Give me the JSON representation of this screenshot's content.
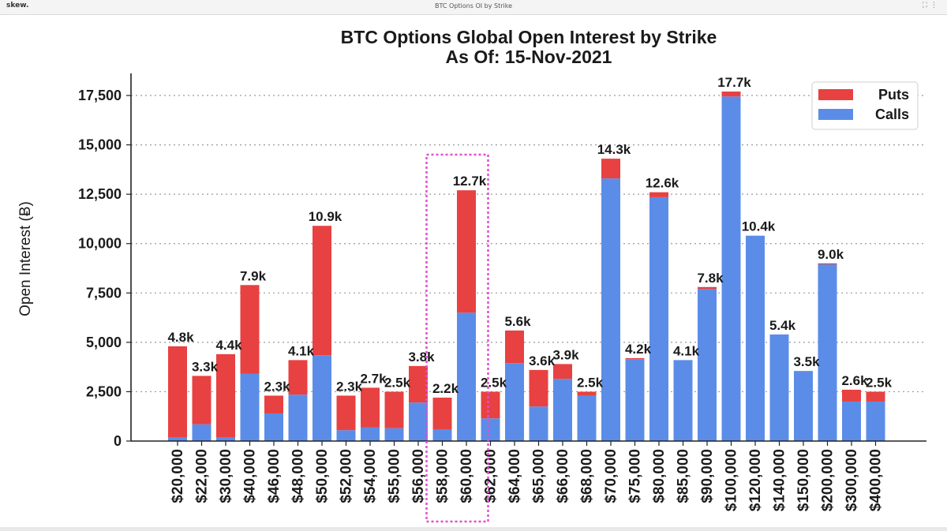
{
  "window": {
    "brand": "skew.",
    "title": "BTC Options OI by Strike",
    "icons": [
      "expand-icon",
      "more-options-icon"
    ]
  },
  "chart_data": {
    "type": "bar",
    "stacked": true,
    "title": "BTC Options Global Open Interest by Strike",
    "subtitle": "As Of: 15-Nov-2021",
    "xlabel": "",
    "ylabel": "Open Interest (Ƀ)",
    "ylim": [
      0,
      18500
    ],
    "yticks": [
      0,
      2500,
      5000,
      7500,
      10000,
      12500,
      15000,
      17500
    ],
    "ytick_labels": [
      "0",
      "2,500",
      "5,000",
      "7,500",
      "10,000",
      "12,500",
      "15,000",
      "17,500"
    ],
    "grid": "horizontal-dotted",
    "legend_position": "top-right",
    "colors": {
      "Puts": "#e84141",
      "Calls": "#5b8de8",
      "highlight": "#e04fd0"
    },
    "categories": [
      "$20,000",
      "$22,000",
      "$30,000",
      "$40,000",
      "$46,000",
      "$48,000",
      "$50,000",
      "$52,000",
      "$54,000",
      "$55,000",
      "$56,000",
      "$58,000",
      "$60,000",
      "$62,000",
      "$64,000",
      "$65,000",
      "$66,000",
      "$68,000",
      "$70,000",
      "$75,000",
      "$80,000",
      "$85,000",
      "$90,000",
      "$100,000",
      "$120,000",
      "$140,000",
      "$150,000",
      "$200,000",
      "$300,000",
      "$400,000"
    ],
    "series": [
      {
        "name": "Calls",
        "values": [
          200,
          850,
          200,
          3400,
          1400,
          2350,
          4350,
          550,
          700,
          650,
          1950,
          600,
          6500,
          1150,
          3950,
          1750,
          3150,
          2300,
          13300,
          4150,
          12350,
          4100,
          7700,
          17450,
          10400,
          5400,
          3550,
          8950,
          2000,
          2000
        ]
      },
      {
        "name": "Puts",
        "values": [
          4600,
          2450,
          4200,
          4500,
          900,
          1750,
          6550,
          1750,
          2000,
          1850,
          1850,
          1600,
          6200,
          1350,
          1650,
          1850,
          750,
          200,
          1000,
          50,
          250,
          0,
          100,
          250,
          0,
          0,
          0,
          50,
          600,
          500
        ]
      }
    ],
    "data_labels": [
      "4.8k",
      "3.3k",
      "4.4k",
      "7.9k",
      "2.3k",
      "4.1k",
      "10.9k",
      "2.3k",
      "2.7k",
      "2.5k",
      "3.8k",
      "2.2k",
      "12.7k",
      "2.5k",
      "5.6k",
      "3.6k",
      "3.9k",
      "2.5k",
      "14.3k",
      "4.2k",
      "12.6k",
      "4.1k",
      "7.8k",
      "17.7k",
      "10.4k",
      "5.4k",
      "3.5k",
      "9.0k",
      "2.6k",
      "2.5k"
    ],
    "highlight_range": [
      "$58,000",
      "$62,000"
    ]
  }
}
